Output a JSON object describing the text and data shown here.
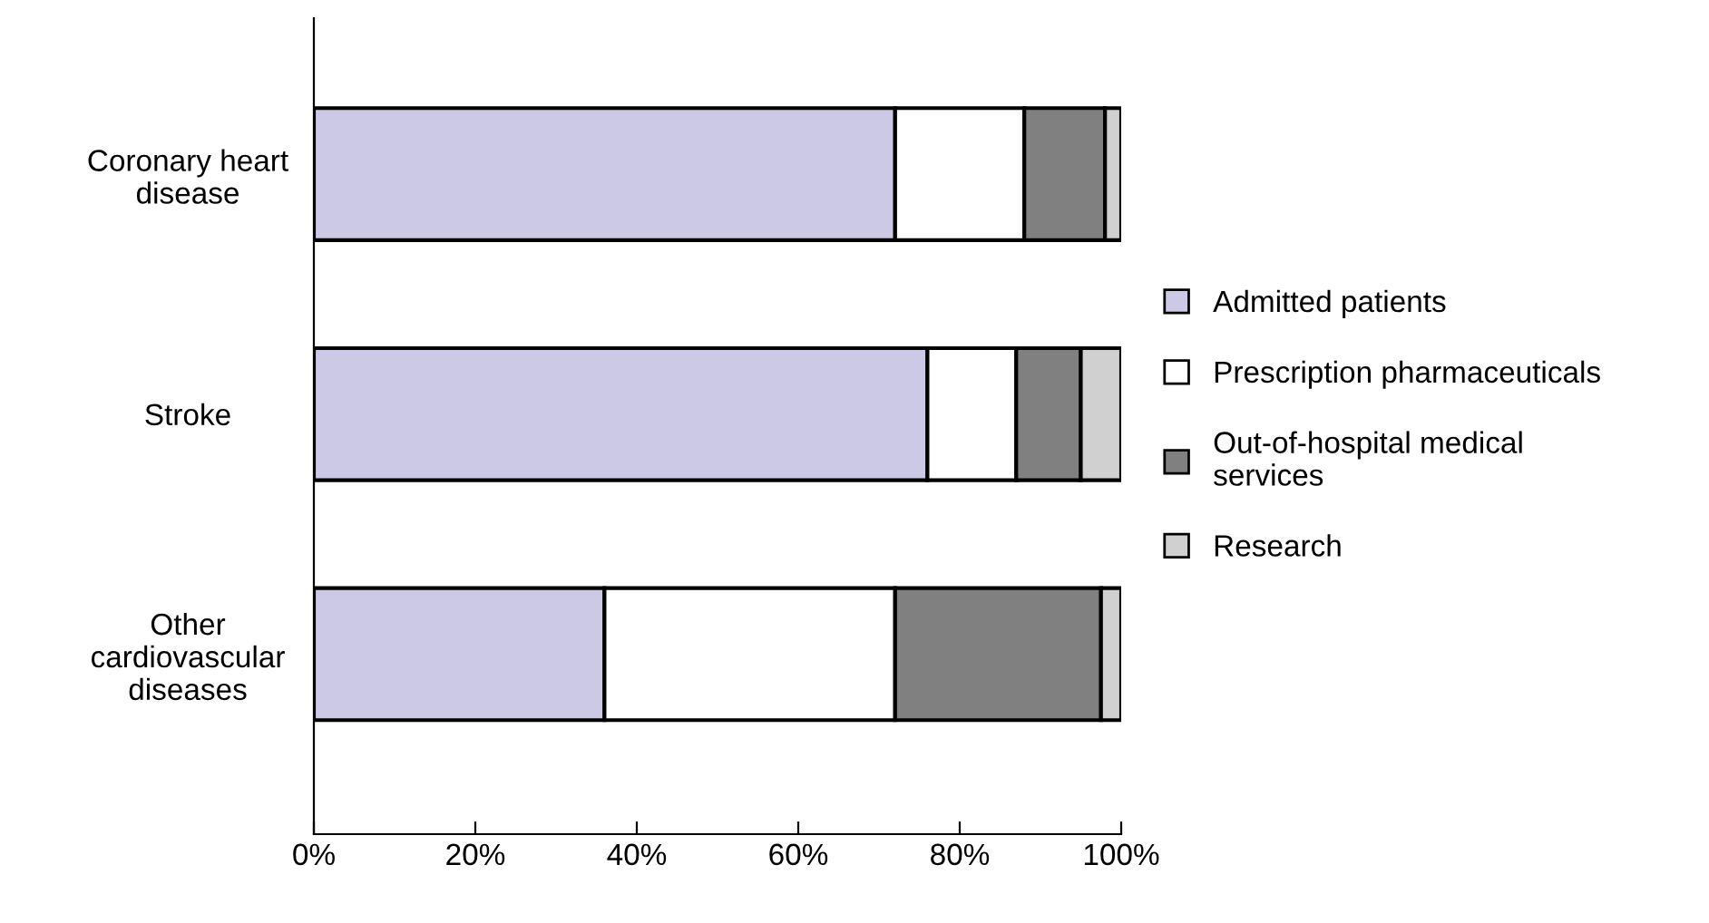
{
  "chart_data": {
    "type": "bar",
    "orientation": "horizontal",
    "stacked": true,
    "categories": [
      "Coronary heart\ndisease",
      "Stroke",
      "Other\ncardiovascular\ndiseases"
    ],
    "series": [
      {
        "name": "Admitted patients",
        "color": "#ccc9e6",
        "values": [
          72,
          76,
          36
        ]
      },
      {
        "name": "Prescription pharmaceuticals",
        "color": "#ffffff",
        "values": [
          16,
          11,
          36
        ]
      },
      {
        "name": "Out-of-hospital medical\nservices",
        "color": "#808080",
        "values": [
          10,
          8,
          25.5
        ]
      },
      {
        "name": "Research",
        "color": "#d0d0d0",
        "values": [
          2,
          5,
          2.5
        ]
      }
    ],
    "xlim": [
      0,
      100
    ],
    "xticks": [
      {
        "value": 0,
        "label": "0%"
      },
      {
        "value": 20,
        "label": "20%"
      },
      {
        "value": 40,
        "label": "40%"
      },
      {
        "value": 60,
        "label": "60%"
      },
      {
        "value": 80,
        "label": "80%"
      },
      {
        "value": 100,
        "label": "100%"
      }
    ],
    "grid": false,
    "legend": "right"
  }
}
